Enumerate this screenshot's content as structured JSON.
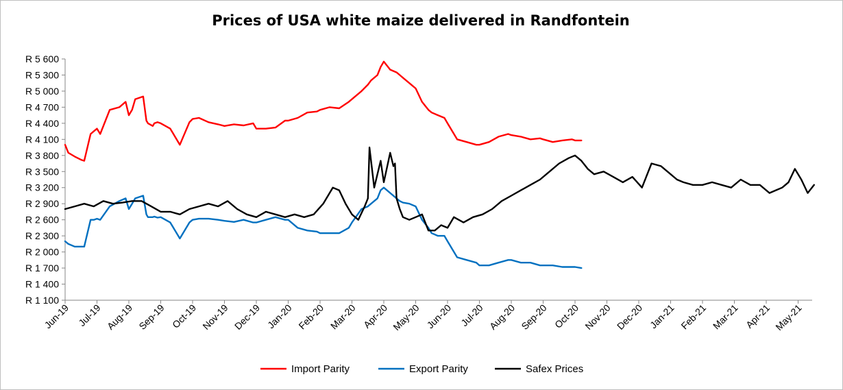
{
  "chart_data": {
    "type": "line",
    "title": "Prices of USA white maize delivered in Randfontein",
    "xlabel": "",
    "ylabel": "",
    "ylim": [
      1100,
      5600
    ],
    "y_ticks": [
      "R 1 100",
      "R 1 400",
      "R 1 700",
      "R 2 000",
      "R 2 300",
      "R 2 600",
      "R 2 900",
      "R 3 200",
      "R 3 500",
      "R 3 800",
      "R 4 100",
      "R 4 400",
      "R 4 700",
      "R 5 000",
      "R 5 300",
      "R 5 600"
    ],
    "y_tick_values": [
      1100,
      1400,
      1700,
      2000,
      2300,
      2600,
      2900,
      3200,
      3500,
      3800,
      4100,
      4400,
      4700,
      5000,
      5300,
      5600
    ],
    "x_ticks": [
      "Jun-19",
      "Jul-19",
      "Aug-19",
      "Sep-19",
      "Oct-19",
      "Nov-19",
      "Dec-19",
      "Jan-20",
      "Feb-20",
      "Mar-20",
      "Apr-20",
      "May-20",
      "Jun-20",
      "Jul-20",
      "Aug-20",
      "Sep-20",
      "Oct-20",
      "Nov-20",
      "Dec-20",
      "Jan-21",
      "Feb-21",
      "Mar-21",
      "Apr-21",
      "May-21"
    ],
    "x_range_months": [
      0,
      23.6
    ],
    "grid": false,
    "legend_position": "bottom",
    "series": [
      {
        "name": "Import Parity",
        "color": "#ff0000",
        "x": [
          0,
          0.1,
          0.3,
          0.5,
          0.6,
          0.8,
          0.9,
          1.0,
          1.1,
          1.4,
          1.7,
          1.9,
          2.0,
          2.1,
          2.2,
          2.45,
          2.55,
          2.6,
          2.75,
          2.8,
          2.9,
          3.0,
          3.3,
          3.6,
          3.9,
          4.0,
          4.2,
          4.5,
          4.8,
          5.0,
          5.3,
          5.6,
          5.9,
          6.0,
          6.3,
          6.6,
          6.9,
          7.0,
          7.3,
          7.6,
          7.9,
          8.0,
          8.3,
          8.6,
          8.9,
          9.0,
          9.3,
          9.5,
          9.6,
          9.8,
          9.9,
          10.0,
          10.2,
          10.4,
          10.5,
          10.6,
          10.8,
          11.0,
          11.2,
          11.4,
          11.5,
          11.7,
          11.9,
          12.0,
          12.3,
          12.6,
          12.9,
          13.0,
          13.3,
          13.6,
          13.9,
          14.0,
          14.3,
          14.6,
          14.9,
          15.0,
          15.3,
          15.6,
          15.9,
          16.0,
          16.2
        ],
        "y": [
          4000,
          3850,
          3780,
          3720,
          3700,
          4200,
          4250,
          4300,
          4200,
          4650,
          4700,
          4800,
          4550,
          4650,
          4850,
          4900,
          4450,
          4400,
          4350,
          4400,
          4420,
          4400,
          4300,
          4000,
          4420,
          4480,
          4500,
          4420,
          4380,
          4350,
          4380,
          4360,
          4400,
          4300,
          4300,
          4320,
          4450,
          4450,
          4500,
          4600,
          4620,
          4650,
          4700,
          4680,
          4800,
          4850,
          5000,
          5120,
          5200,
          5300,
          5450,
          5550,
          5400,
          5350,
          5300,
          5250,
          5150,
          5050,
          4800,
          4650,
          4600,
          4550,
          4500,
          4400,
          4100,
          4050,
          4000,
          4000,
          4050,
          4150,
          4200,
          4180,
          4150,
          4100,
          4120,
          4100,
          4050,
          4080,
          4100,
          4080,
          4080
        ]
      },
      {
        "name": "Export Parity",
        "color": "#0070c0",
        "x": [
          0,
          0.1,
          0.3,
          0.5,
          0.6,
          0.8,
          0.9,
          1.0,
          1.1,
          1.4,
          1.7,
          1.9,
          2.0,
          2.1,
          2.2,
          2.45,
          2.55,
          2.6,
          2.75,
          2.8,
          2.9,
          3.0,
          3.3,
          3.6,
          3.9,
          4.0,
          4.2,
          4.5,
          4.8,
          5.0,
          5.3,
          5.6,
          5.9,
          6.0,
          6.3,
          6.6,
          6.9,
          7.0,
          7.3,
          7.6,
          7.9,
          8.0,
          8.3,
          8.6,
          8.9,
          9.0,
          9.3,
          9.5,
          9.6,
          9.8,
          9.9,
          10.0,
          10.2,
          10.4,
          10.5,
          10.6,
          10.8,
          11.0,
          11.2,
          11.4,
          11.5,
          11.7,
          11.9,
          12.0,
          12.3,
          12.6,
          12.9,
          13.0,
          13.3,
          13.6,
          13.9,
          14.0,
          14.3,
          14.6,
          14.9,
          15.0,
          15.3,
          15.6,
          15.9,
          16.0,
          16.2
        ],
        "y": [
          2200,
          2150,
          2100,
          2100,
          2100,
          2600,
          2600,
          2620,
          2600,
          2850,
          2950,
          3000,
          2800,
          2900,
          3000,
          3050,
          2700,
          2650,
          2650,
          2660,
          2640,
          2650,
          2550,
          2250,
          2550,
          2600,
          2620,
          2620,
          2600,
          2580,
          2560,
          2600,
          2550,
          2550,
          2600,
          2650,
          2600,
          2600,
          2450,
          2400,
          2380,
          2350,
          2350,
          2350,
          2450,
          2550,
          2800,
          2850,
          2900,
          3000,
          3150,
          3200,
          3100,
          3000,
          2950,
          2920,
          2900,
          2850,
          2600,
          2450,
          2350,
          2300,
          2300,
          2200,
          1900,
          1850,
          1800,
          1750,
          1750,
          1800,
          1850,
          1850,
          1800,
          1800,
          1750,
          1750,
          1750,
          1720,
          1720,
          1720,
          1700
        ]
      },
      {
        "name": "Safex Prices",
        "color": "#000000",
        "x": [
          0,
          0.3,
          0.6,
          0.9,
          1.2,
          1.5,
          1.8,
          2.1,
          2.4,
          2.7,
          3.0,
          3.3,
          3.6,
          3.9,
          4.2,
          4.5,
          4.8,
          5.1,
          5.4,
          5.7,
          6.0,
          6.3,
          6.6,
          6.9,
          7.2,
          7.5,
          7.8,
          8.1,
          8.4,
          8.6,
          8.8,
          9.0,
          9.2,
          9.4,
          9.5,
          9.55,
          9.7,
          9.9,
          10.0,
          10.2,
          10.3,
          10.35,
          10.4,
          10.5,
          10.6,
          10.8,
          11.0,
          11.2,
          11.4,
          11.6,
          11.8,
          12.0,
          12.2,
          12.5,
          12.8,
          13.1,
          13.4,
          13.7,
          14.0,
          14.3,
          14.6,
          14.9,
          15.2,
          15.5,
          15.8,
          16.0,
          16.2,
          16.4,
          16.6,
          16.9,
          17.2,
          17.5,
          17.8,
          18.1,
          18.4,
          18.7,
          19.0,
          19.2,
          19.4,
          19.7,
          20.0,
          20.3,
          20.6,
          20.9,
          21.2,
          21.5,
          21.8,
          22.1,
          22.3,
          22.5,
          22.7,
          22.9,
          23.1,
          23.3,
          23.5
        ],
        "y": [
          2800,
          2850,
          2900,
          2850,
          2950,
          2900,
          2920,
          2950,
          2950,
          2850,
          2750,
          2750,
          2700,
          2800,
          2850,
          2900,
          2850,
          2950,
          2800,
          2700,
          2650,
          2750,
          2700,
          2650,
          2700,
          2650,
          2700,
          2900,
          3200,
          3150,
          2900,
          2700,
          2600,
          2850,
          3000,
          3950,
          3200,
          3700,
          3300,
          3850,
          3600,
          3650,
          3000,
          2800,
          2650,
          2600,
          2650,
          2700,
          2400,
          2400,
          2500,
          2450,
          2650,
          2550,
          2650,
          2700,
          2800,
          2950,
          3050,
          3150,
          3250,
          3350,
          3500,
          3650,
          3750,
          3800,
          3700,
          3550,
          3450,
          3500,
          3400,
          3300,
          3400,
          3200,
          3650,
          3600,
          3450,
          3350,
          3300,
          3250,
          3250,
          3300,
          3250,
          3200,
          3350,
          3250,
          3250,
          3100,
          3150,
          3200,
          3300,
          3550,
          3350,
          3100,
          3250
        ]
      }
    ]
  }
}
